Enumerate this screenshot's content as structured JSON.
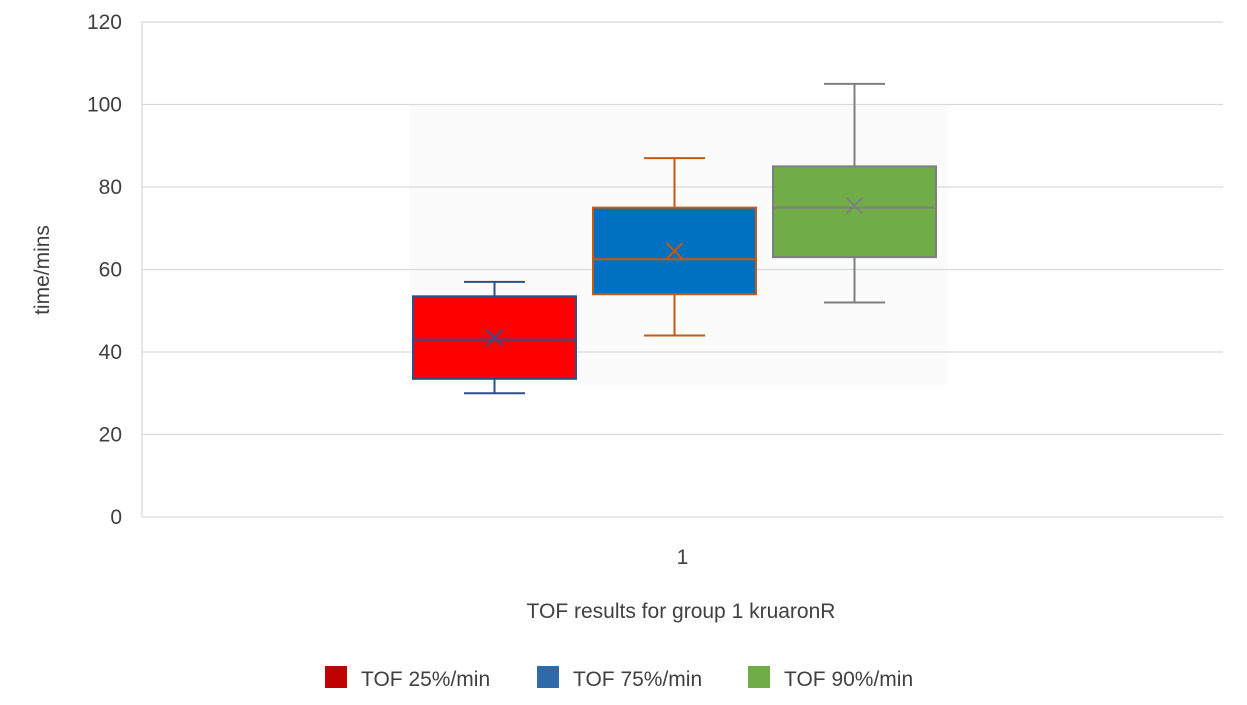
{
  "chart_data": {
    "type": "boxplot",
    "title": "",
    "xlabel": "TOF results for group 1 kruaronR",
    "ylabel": "time/mins",
    "categories": [
      "1"
    ],
    "ylim": [
      0,
      120
    ],
    "yticks": [
      0,
      20,
      40,
      60,
      80,
      100,
      120
    ],
    "grid": true,
    "legend_position": "bottom",
    "series": [
      {
        "name": "TOF 25%/min",
        "color": "#ff0000",
        "border": "#2e4f8a",
        "min": 30,
        "q1": 33.5,
        "median": 43,
        "q3": 53.5,
        "max": 57,
        "mean": 43.5
      },
      {
        "name": "TOF 75%/min",
        "color": "#0070c0",
        "border": "#c55a11",
        "min": 44,
        "q1": 54,
        "median": 62.5,
        "q3": 75,
        "max": 87,
        "mean": 64.5
      },
      {
        "name": "TOF 90%/min",
        "color": "#70ad47",
        "border": "#7f7f7f",
        "min": 52,
        "q1": 63,
        "median": 75,
        "q3": 85,
        "max": 105,
        "mean": 75.5
      }
    ]
  }
}
